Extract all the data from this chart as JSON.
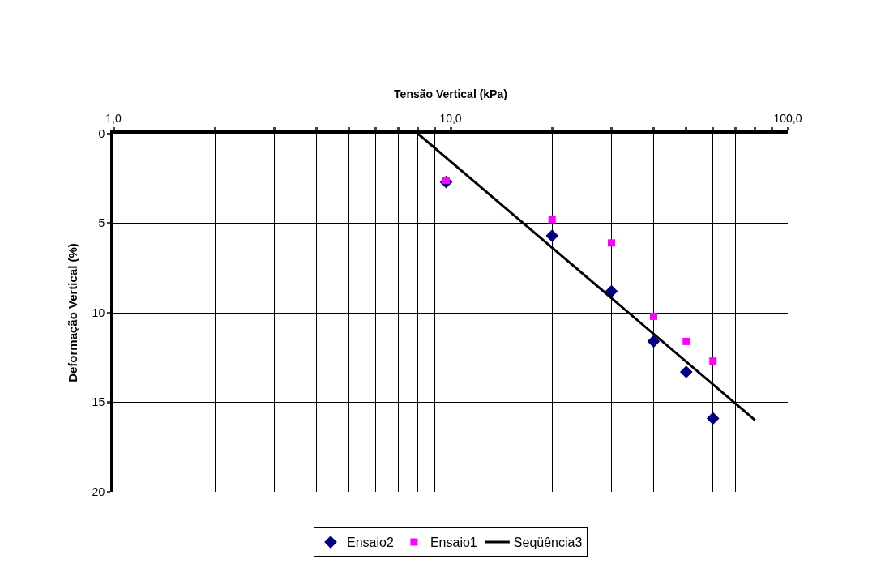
{
  "chart_data": {
    "type": "scatter",
    "xlabel": "Tensão Vertical (kPa)",
    "ylabel": "Deformação Vertical (%)",
    "log": "x",
    "grid": true,
    "legend": "bottom",
    "xlim": [
      1,
      100
    ],
    "ylim": [
      20,
      0
    ],
    "xticks": [
      {
        "value": 1,
        "label": "1,0"
      },
      {
        "value": 2,
        "label": null
      },
      {
        "value": 3,
        "label": null
      },
      {
        "value": 4,
        "label": null
      },
      {
        "value": 5,
        "label": null
      },
      {
        "value": 6,
        "label": null
      },
      {
        "value": 7,
        "label": null
      },
      {
        "value": 8,
        "label": null
      },
      {
        "value": 9,
        "label": null
      },
      {
        "value": 10,
        "label": "10,0"
      },
      {
        "value": 20,
        "label": null
      },
      {
        "value": 30,
        "label": null
      },
      {
        "value": 40,
        "label": null
      },
      {
        "value": 50,
        "label": null
      },
      {
        "value": 60,
        "label": null
      },
      {
        "value": 70,
        "label": null
      },
      {
        "value": 80,
        "label": null
      },
      {
        "value": 90,
        "label": null
      },
      {
        "value": 100,
        "label": "100,0"
      }
    ],
    "yticks": [
      0,
      5,
      10,
      15,
      20
    ],
    "series": [
      {
        "name": "Ensaio2",
        "marker": "diamond",
        "color": "#000080",
        "x": [
          9.7,
          20,
          30,
          40,
          50,
          60
        ],
        "values": [
          2.7,
          5.7,
          8.8,
          11.6,
          13.3,
          15.9
        ]
      },
      {
        "name": "Ensaio1",
        "marker": "square",
        "color": "#ff00ff",
        "x": [
          9.7,
          20,
          30,
          40,
          50,
          60
        ],
        "values": [
          2.6,
          4.8,
          6.1,
          10.2,
          11.6,
          12.7
        ]
      },
      {
        "name": "Seqüência3",
        "type": "line",
        "marker": "none",
        "line_style": "solid",
        "color": "#000000",
        "x": [
          8,
          80
        ],
        "values": [
          0,
          16
        ]
      }
    ]
  }
}
